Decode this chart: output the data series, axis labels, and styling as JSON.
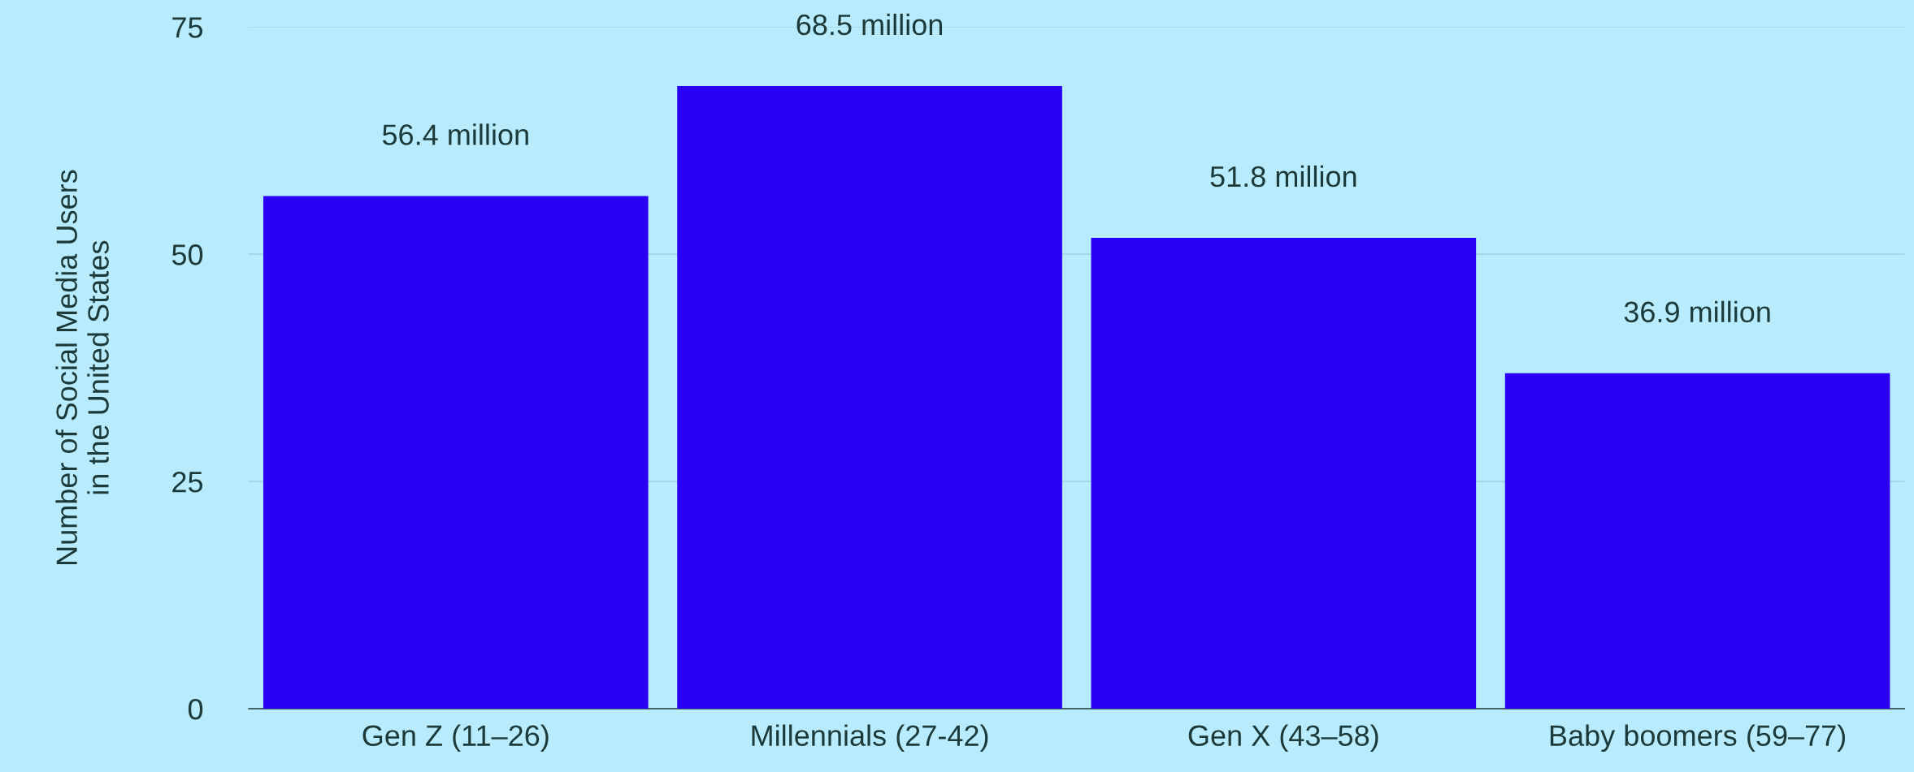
{
  "chart_data": {
    "type": "bar",
    "ylabel": "Number of Social Media Users\nin the United States",
    "categories": [
      "Gen Z (11–26)",
      "Millennials (27-42)",
      "Gen X (43–58)",
      "Baby boomers (59–77)"
    ],
    "values": [
      56.4,
      68.5,
      51.8,
      36.9
    ],
    "value_labels": [
      "56.4 million",
      "68.5 million",
      "51.8 million",
      "36.9 million"
    ],
    "color": "#2a00f5",
    "ylim": [
      0,
      75
    ],
    "yticks": [
      0,
      25,
      50,
      75
    ],
    "grid": "y"
  }
}
